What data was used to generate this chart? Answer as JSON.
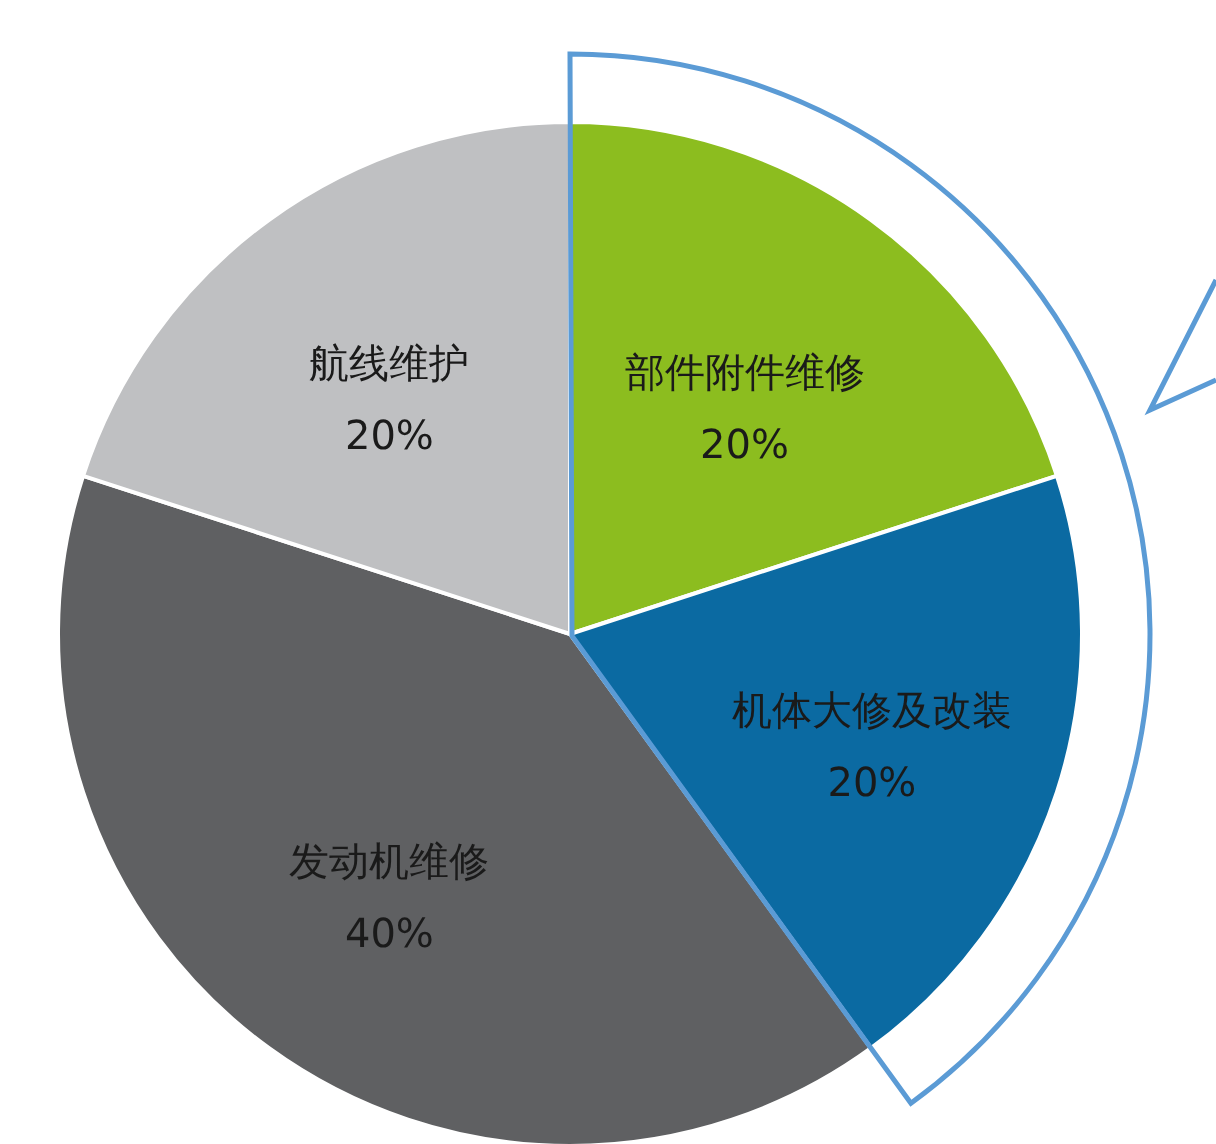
{
  "chart_data": {
    "type": "pie",
    "categories": [
      "部件附件维修",
      "机体大修及改装",
      "发动机维修",
      "航线维护"
    ],
    "values": [
      20,
      20,
      40,
      20
    ],
    "colors": [
      "#8cbd1f",
      "#0b6aa2",
      "#5f6062",
      "#bfc0c2"
    ],
    "value_labels": [
      "20%",
      "20%",
      "40%",
      "20%"
    ]
  }
}
